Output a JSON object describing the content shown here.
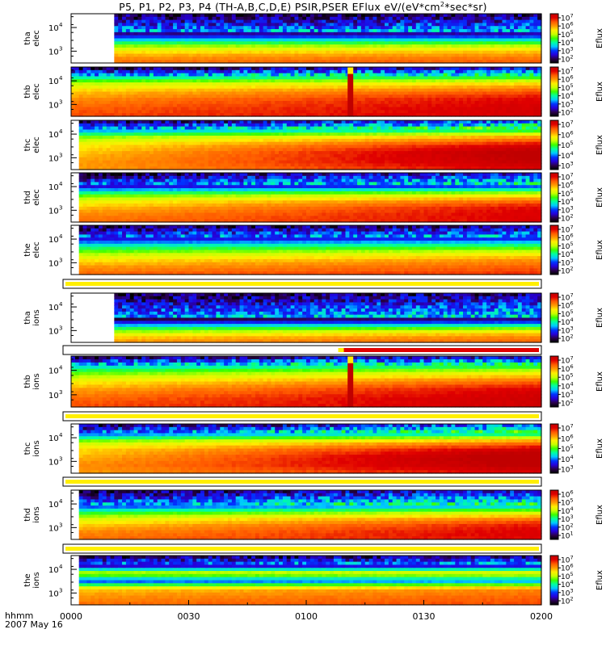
{
  "title": {
    "prefix": "P5, P1, P2, P3, P4 (TH-A,B,C,D,E) PSIR,PSER EFlux eV/(eV*cm",
    "sup": "2",
    "suffix": "*sec*sr)"
  },
  "footer": {
    "format": "hhmm",
    "date": "2007 May 16"
  },
  "chart_data": {
    "type": "heatmap",
    "title": "P5, P1, P2, P3, P4 (TH-A,B,C,D,E) PSIR,PSER EFlux eV/(eV*cm2*sec*sr)",
    "x_ticks": [
      "0000",
      "0030",
      "0100",
      "0130",
      "0200"
    ],
    "x_range": [
      "0000",
      "0200"
    ],
    "colorbar_label": "Eflux",
    "colors": {
      "ramp": [
        "#000000",
        "#2a004c",
        "#2600d9",
        "#0033ff",
        "#00c8ff",
        "#00ffa0",
        "#39ff00",
        "#c8ff00",
        "#ffee00",
        "#ff9a00",
        "#ff5a00",
        "#e00000",
        "#c00000"
      ],
      "flag": "#ffef00",
      "flag_alert": "#e00000"
    },
    "panels": [
      {
        "probe": "tha",
        "species": "elec",
        "y_ticks": [
          "10",
          "10"
        ],
        "y_exp": [
          "4",
          "3"
        ],
        "cb_ticks": [
          "10",
          "10",
          "10",
          "10",
          "10",
          "10"
        ],
        "cb_exp": [
          "7",
          "6",
          "5",
          "4",
          "3",
          "2"
        ],
        "data_start": 0.09,
        "top_noise": 0.38,
        "levels": [
          0.08,
          0.3,
          0.52,
          0.66,
          0.76,
          0.82
        ],
        "trend": 0.05,
        "gap": null
      },
      {
        "probe": "thb",
        "species": "elec",
        "y_ticks": [
          "10",
          "10"
        ],
        "y_exp": [
          "4",
          "3"
        ],
        "cb_ticks": [
          "10",
          "10",
          "10",
          "10",
          "10",
          "10"
        ],
        "cb_exp": [
          "7",
          "6",
          "5",
          "4",
          "3",
          "2"
        ],
        "data_start": 0.0,
        "top_noise": 0.16,
        "levels": [
          0.34,
          0.6,
          0.74,
          0.82,
          0.86,
          0.88
        ],
        "trend": 0.16,
        "gap": [
          0.588,
          0.6
        ]
      },
      {
        "probe": "thc",
        "species": "elec",
        "y_ticks": [
          "10",
          "10"
        ],
        "y_exp": [
          "4",
          "3"
        ],
        "cb_ticks": [
          "10",
          "10",
          "10",
          "10",
          "10"
        ],
        "cb_exp": [
          "7",
          "6",
          "5",
          "4",
          "3"
        ],
        "data_start": 0.02,
        "top_noise": 0.18,
        "levels": [
          0.3,
          0.6,
          0.74,
          0.8,
          0.82,
          0.8
        ],
        "trend": 0.34,
        "gap": null
      },
      {
        "probe": "thd",
        "species": "elec",
        "y_ticks": [
          "10",
          "10"
        ],
        "y_exp": [
          "4",
          "3"
        ],
        "cb_ticks": [
          "10",
          "10",
          "10",
          "10",
          "10",
          "10"
        ],
        "cb_exp": [
          "7",
          "6",
          "5",
          "4",
          "3",
          "2"
        ],
        "data_start": 0.02,
        "top_noise": 0.28,
        "levels": [
          0.2,
          0.5,
          0.68,
          0.77,
          0.82,
          0.84
        ],
        "trend": 0.22,
        "gap": null
      },
      {
        "probe": "the",
        "species": "elec",
        "y_ticks": [
          "10",
          "10"
        ],
        "y_exp": [
          "4",
          "3"
        ],
        "cb_ticks": [
          "10",
          "10",
          "10",
          "10",
          "10",
          "10"
        ],
        "cb_exp": [
          "7",
          "6",
          "5",
          "4",
          "3",
          "2"
        ],
        "data_start": 0.02,
        "top_noise": 0.28,
        "levels": [
          0.2,
          0.42,
          0.58,
          0.7,
          0.78,
          0.84
        ],
        "trend": 0.1,
        "gap": null
      },
      {
        "probe": "tha",
        "species": "ions",
        "y_ticks": [
          "10",
          "10"
        ],
        "y_exp": [
          "4",
          "3"
        ],
        "cb_ticks": [
          "10",
          "10",
          "10",
          "10",
          "10",
          "10"
        ],
        "cb_exp": [
          "7",
          "6",
          "5",
          "4",
          "3",
          "2"
        ],
        "data_start": 0.09,
        "top_noise": 0.52,
        "levels": [
          0.06,
          0.26,
          0.46,
          0.62,
          0.72,
          0.78
        ],
        "trend": 0.12,
        "gap": null
      },
      {
        "probe": "thb",
        "species": "ions",
        "y_ticks": [
          "10",
          "10"
        ],
        "y_exp": [
          "4",
          "3"
        ],
        "cb_ticks": [
          "10",
          "10",
          "10",
          "10",
          "10",
          "10"
        ],
        "cb_exp": [
          "7",
          "6",
          "5",
          "4",
          "3",
          "2"
        ],
        "data_start": 0.0,
        "top_noise": 0.16,
        "levels": [
          0.34,
          0.55,
          0.7,
          0.8,
          0.86,
          0.88
        ],
        "trend": 0.2,
        "gap": [
          0.588,
          0.6
        ]
      },
      {
        "probe": "thc",
        "species": "ions",
        "y_ticks": [
          "10",
          "10"
        ],
        "y_exp": [
          "4",
          "3"
        ],
        "cb_ticks": [
          "10",
          "10",
          "10",
          "10",
          "10"
        ],
        "cb_exp": [
          "7",
          "6",
          "5",
          "4",
          "3"
        ],
        "data_start": 0.02,
        "top_noise": 0.2,
        "levels": [
          0.3,
          0.62,
          0.76,
          0.82,
          0.84,
          0.8
        ],
        "trend": 0.34,
        "gap": null
      },
      {
        "probe": "thd",
        "species": "ions",
        "y_ticks": [
          "10",
          "10"
        ],
        "y_exp": [
          "4",
          "3"
        ],
        "cb_ticks": [
          "10",
          "10",
          "10",
          "10",
          "10",
          "10"
        ],
        "cb_exp": [
          "6",
          "5",
          "4",
          "3",
          "2",
          "1"
        ],
        "data_start": 0.02,
        "top_noise": 0.3,
        "levels": [
          0.22,
          0.48,
          0.66,
          0.76,
          0.82,
          0.84
        ],
        "trend": 0.22,
        "gap": null
      },
      {
        "probe": "the",
        "species": "ions",
        "y_ticks": [
          "10",
          "10"
        ],
        "y_exp": [
          "4",
          "3"
        ],
        "cb_ticks": [
          "10",
          "10",
          "10",
          "10",
          "10",
          "10"
        ],
        "cb_exp": [
          "7",
          "6",
          "5",
          "4",
          "3",
          "2"
        ],
        "data_start": 0.02,
        "top_noise": 0.2,
        "levels": [
          0.12,
          0.62,
          0.26,
          0.72,
          0.78,
          0.82
        ],
        "trend": 0.08,
        "gap": null
      }
    ],
    "flag_bars": [
      {
        "after": "the elec",
        "alert_from": null
      },
      {
        "after": "tha ions",
        "alert_from": 0.58
      },
      {
        "after": "thb ions",
        "alert_from": null
      },
      {
        "after": "thc ions",
        "alert_from": null
      },
      {
        "after": "thd ions",
        "alert_from": null
      }
    ]
  }
}
